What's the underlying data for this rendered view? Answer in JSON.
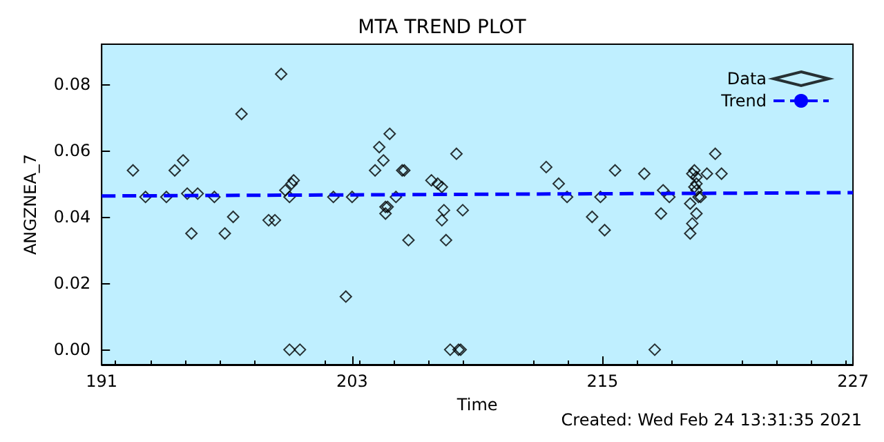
{
  "chart_data": {
    "type": "scatter",
    "title": "MTA TREND PLOT",
    "xlabel": "Time",
    "ylabel": "ANGZNEA_7",
    "annotations": [
      "Created: Wed Feb 24 13:31:35 2021"
    ],
    "xlim": [
      191,
      227
    ],
    "xticks": [
      191,
      203,
      215,
      227
    ],
    "ylim": [
      -0.0045,
      0.092
    ],
    "yticks": [
      {
        "value": 0,
        "label": "0.00"
      },
      {
        "value": 0.02,
        "label": "0.02"
      },
      {
        "value": 0.04,
        "label": "0.04"
      },
      {
        "value": 0.06,
        "label": "0.06"
      },
      {
        "value": 0.08,
        "label": "0.08"
      }
    ],
    "grid": false,
    "legend": "top right",
    "series": [
      {
        "name": "Data",
        "color": "#000000",
        "marker": "diamond",
        "x": [
          192.5,
          193.1,
          194.1,
          194.5,
          194.9,
          195.1,
          195.3,
          195.6,
          196.4,
          196.9,
          197.3,
          197.7,
          199.0,
          199.3,
          199.6,
          199.8,
          200.0,
          200.1,
          200.2,
          200.0,
          200.5,
          202.1,
          202.7,
          203.0,
          204.1,
          204.3,
          204.5,
          204.8,
          205.4,
          205.5,
          204.6,
          204.6,
          204.7,
          205.1,
          205.7,
          206.8,
          207.1,
          207.3,
          208.0,
          207.4,
          207.3,
          207.5,
          208.3,
          207.7,
          208.1,
          208.2,
          212.3,
          212.9,
          213.3,
          214.9,
          214.5,
          215.1,
          215.6,
          217.0,
          217.8,
          217.9,
          218.2,
          217.5,
          219.3,
          219.4,
          219.2,
          219.3,
          219.2,
          219.5,
          219.5,
          219.4,
          219.5,
          219.6,
          219.7,
          220.0,
          220.7,
          220.4,
          219.5
        ],
        "values": [
          0.054,
          0.046,
          0.046,
          0.054,
          0.057,
          0.047,
          0.035,
          0.047,
          0.046,
          0.035,
          0.04,
          0.071,
          0.039,
          0.039,
          0.083,
          0.048,
          0.046,
          0.05,
          0.051,
          0,
          0,
          0.046,
          0.016,
          0.046,
          0.054,
          0.061,
          0.057,
          0.065,
          0.054,
          0.054,
          0.043,
          0.041,
          0.043,
          0.046,
          0.033,
          0.051,
          0.05,
          0.049,
          0.059,
          0.042,
          0.039,
          0.033,
          0.042,
          0,
          0,
          0,
          0.055,
          0.05,
          0.046,
          0.046,
          0.04,
          0.036,
          0.054,
          0.053,
          0.041,
          0.048,
          0.046,
          0,
          0.053,
          0.054,
          0.044,
          0.038,
          0.035,
          0.041,
          0.052,
          0.049,
          0.048,
          0.046,
          0.046,
          0.053,
          0.053,
          0.059,
          0.05
        ]
      },
      {
        "name": "Trend",
        "type": "line",
        "color": "#0000ff",
        "marker": "none",
        "line_style": "dashed",
        "x": [
          191,
          227
        ],
        "values": [
          0.0463,
          0.0473
        ]
      }
    ]
  }
}
